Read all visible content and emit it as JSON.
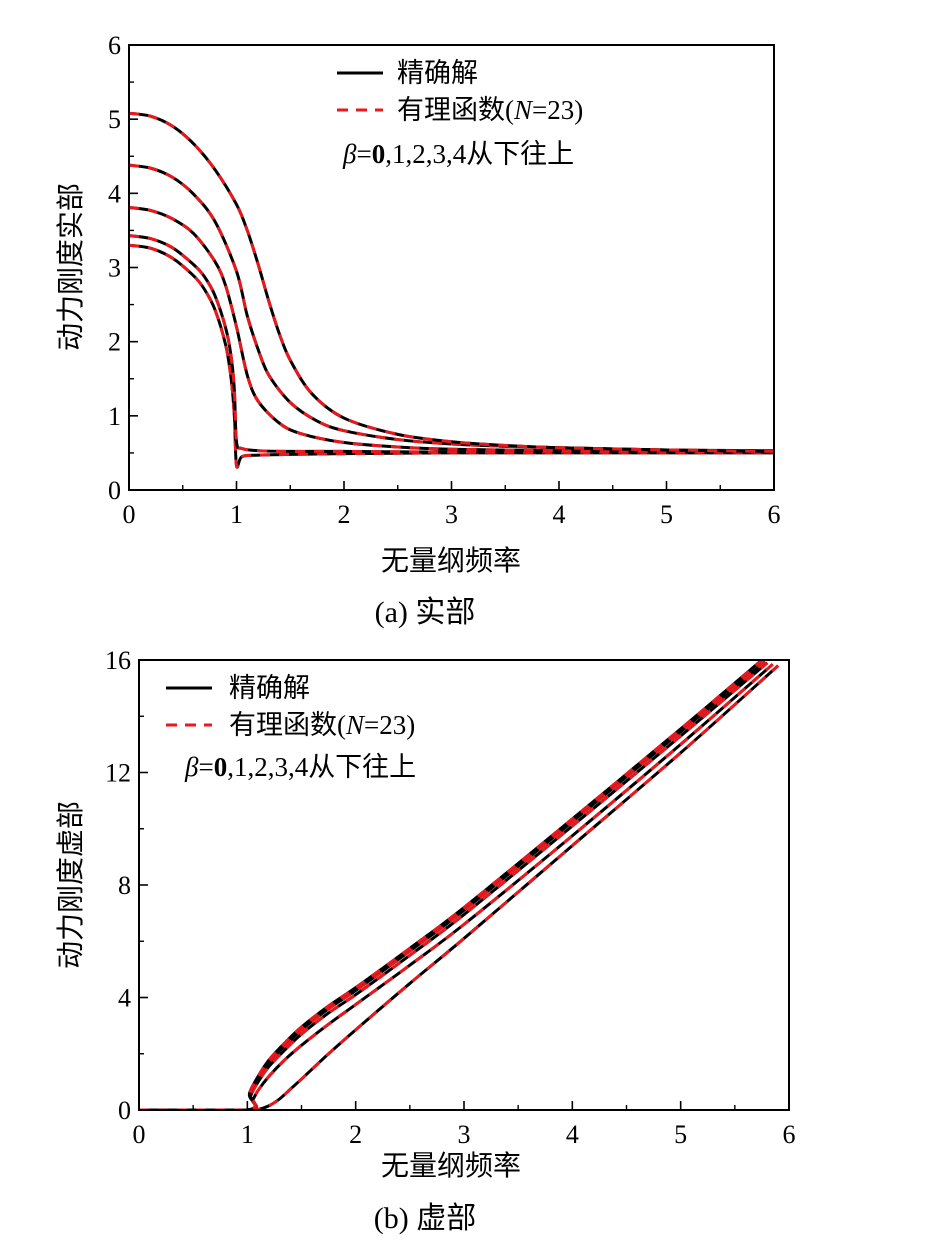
{
  "chart_data": [
    {
      "type": "line",
      "panel": "a",
      "caption": "(a)  实部",
      "xlabel": "无量纲频率",
      "ylabel": "动力刚度实部",
      "xlim": [
        0,
        6
      ],
      "ylim": [
        0,
        6
      ],
      "xticks": [
        "0",
        "1",
        "2",
        "3",
        "4",
        "5",
        "6"
      ],
      "yticks": [
        "0",
        "1",
        "2",
        "3",
        "4",
        "5",
        "6"
      ],
      "legend": {
        "entries": [
          {
            "label": "精确解",
            "style": "solid",
            "color": "#000000"
          },
          {
            "label_prefix": "有理函数(",
            "label_var": "N",
            "label_suffix": "=23)",
            "style": "dashed",
            "color": "#e8191e"
          }
        ],
        "note_symbol": "β",
        "note_eq": "=",
        "note_bold": "0",
        "note_rest": ",1,2,3,4从下往上",
        "placement": "top-center"
      },
      "series": [
        {
          "name": "β=0",
          "x": [
            0,
            0.2,
            0.4,
            0.6,
            0.7,
            0.8,
            0.9,
            0.95,
            0.98,
            1.0,
            1.05,
            1.2,
            1.5,
            2,
            3,
            4,
            5,
            6
          ],
          "y": [
            3.3,
            3.26,
            3.13,
            2.89,
            2.71,
            2.43,
            1.95,
            1.5,
            1.0,
            0.33,
            0.45,
            0.47,
            0.48,
            0.49,
            0.5,
            0.5,
            0.5,
            0.5
          ]
        },
        {
          "name": "β=1",
          "x": [
            0,
            0.2,
            0.4,
            0.6,
            0.7,
            0.8,
            0.9,
            0.95,
            0.98,
            1.0,
            1.05,
            1.2,
            1.5,
            2,
            3,
            4,
            5,
            6
          ],
          "y": [
            3.43,
            3.39,
            3.27,
            3.04,
            2.88,
            2.62,
            2.18,
            1.8,
            1.35,
            0.65,
            0.56,
            0.53,
            0.52,
            0.52,
            0.51,
            0.51,
            0.51,
            0.51
          ]
        },
        {
          "name": "β=2",
          "x": [
            0,
            0.2,
            0.4,
            0.6,
            0.8,
            0.9,
            1.0,
            1.1,
            1.2,
            1.4,
            1.6,
            2,
            2.5,
            3,
            4,
            5,
            6
          ],
          "y": [
            3.81,
            3.77,
            3.66,
            3.46,
            3.08,
            2.75,
            2.2,
            1.55,
            1.2,
            0.9,
            0.76,
            0.64,
            0.58,
            0.55,
            0.53,
            0.52,
            0.52
          ]
        },
        {
          "name": "β=3",
          "x": [
            0,
            0.2,
            0.4,
            0.6,
            0.8,
            1.0,
            1.1,
            1.2,
            1.3,
            1.5,
            1.75,
            2,
            2.5,
            3,
            3.5,
            4,
            5,
            6
          ],
          "y": [
            4.38,
            4.34,
            4.22,
            3.99,
            3.62,
            2.95,
            2.35,
            1.9,
            1.55,
            1.18,
            0.93,
            0.8,
            0.68,
            0.62,
            0.59,
            0.57,
            0.54,
            0.53
          ]
        },
        {
          "name": "β=4",
          "x": [
            0,
            0.2,
            0.4,
            0.6,
            0.8,
            1.0,
            1.1,
            1.2,
            1.3,
            1.4,
            1.5,
            1.7,
            2,
            2.5,
            3,
            3.5,
            4,
            5,
            6
          ],
          "y": [
            5.08,
            5.04,
            4.91,
            4.67,
            4.32,
            3.85,
            3.5,
            3.05,
            2.55,
            2.1,
            1.75,
            1.3,
            0.97,
            0.75,
            0.65,
            0.6,
            0.57,
            0.54,
            0.52
          ]
        }
      ]
    },
    {
      "type": "line",
      "panel": "b",
      "caption": "(b)  虚部",
      "xlabel": "无量纲频率",
      "ylabel": "动力刚度虚部",
      "xlim": [
        0,
        6
      ],
      "ylim": [
        0,
        16
      ],
      "xticks": [
        "0",
        "1",
        "2",
        "3",
        "4",
        "5",
        "6"
      ],
      "yticks": [
        "0",
        "4",
        "8",
        "12",
        "16"
      ],
      "legend": {
        "entries": [
          {
            "label": "精确解",
            "style": "solid",
            "color": "#000000"
          },
          {
            "label_prefix": "有理函数(",
            "label_var": "N",
            "label_suffix": "=23)",
            "style": "dashed",
            "color": "#e8191e"
          }
        ],
        "note_symbol": "β",
        "note_eq": "=",
        "note_bold": "0",
        "note_rest": ",1,2,3,4从下往上",
        "placement": "top-left"
      },
      "series": [
        {
          "name": "β=0",
          "x": [
            0,
            1.0,
            1.1,
            1.2,
            1.3,
            1.4,
            1.5,
            1.75,
            2,
            2.5,
            3,
            4,
            5,
            5.9
          ],
          "y": [
            0,
            0,
            0.02,
            0.15,
            0.4,
            0.75,
            1.1,
            2.0,
            2.85,
            4.5,
            6.1,
            9.4,
            12.7,
            15.8
          ]
        },
        {
          "name": "β=1",
          "x": [
            0,
            1.0,
            1.05,
            1.1,
            1.2,
            1.35,
            1.5,
            1.75,
            2,
            2.5,
            3,
            4,
            5,
            5.85
          ],
          "y": [
            0,
            0,
            0.35,
            0.7,
            1.2,
            1.8,
            2.3,
            3.05,
            3.75,
            5.15,
            6.6,
            9.75,
            13.0,
            15.85
          ]
        },
        {
          "name": "β=2",
          "x": [
            0,
            1.0,
            1.03,
            1.1,
            1.2,
            1.35,
            1.5,
            1.75,
            2,
            2.5,
            3,
            4,
            5,
            5.8
          ],
          "y": [
            0,
            0,
            0.5,
            1.0,
            1.55,
            2.15,
            2.7,
            3.45,
            4.1,
            5.5,
            6.95,
            10.1,
            13.3,
            15.9
          ]
        },
        {
          "name": "β=3",
          "x": [
            0,
            1.0,
            1.02,
            1.1,
            1.2,
            1.35,
            1.5,
            1.75,
            2,
            2.5,
            3,
            4,
            5,
            5.78
          ],
          "y": [
            0,
            0,
            0.55,
            1.15,
            1.7,
            2.3,
            2.85,
            3.6,
            4.25,
            5.65,
            7.1,
            10.25,
            13.45,
            15.95
          ]
        },
        {
          "name": "β=4",
          "x": [
            0,
            1.0,
            1.02,
            1.1,
            1.2,
            1.35,
            1.5,
            1.75,
            2,
            2.5,
            3,
            4,
            5,
            5.75
          ],
          "y": [
            0,
            0,
            0.6,
            1.2,
            1.78,
            2.4,
            2.95,
            3.7,
            4.35,
            5.75,
            7.2,
            10.35,
            13.55,
            16.0
          ]
        }
      ]
    }
  ]
}
